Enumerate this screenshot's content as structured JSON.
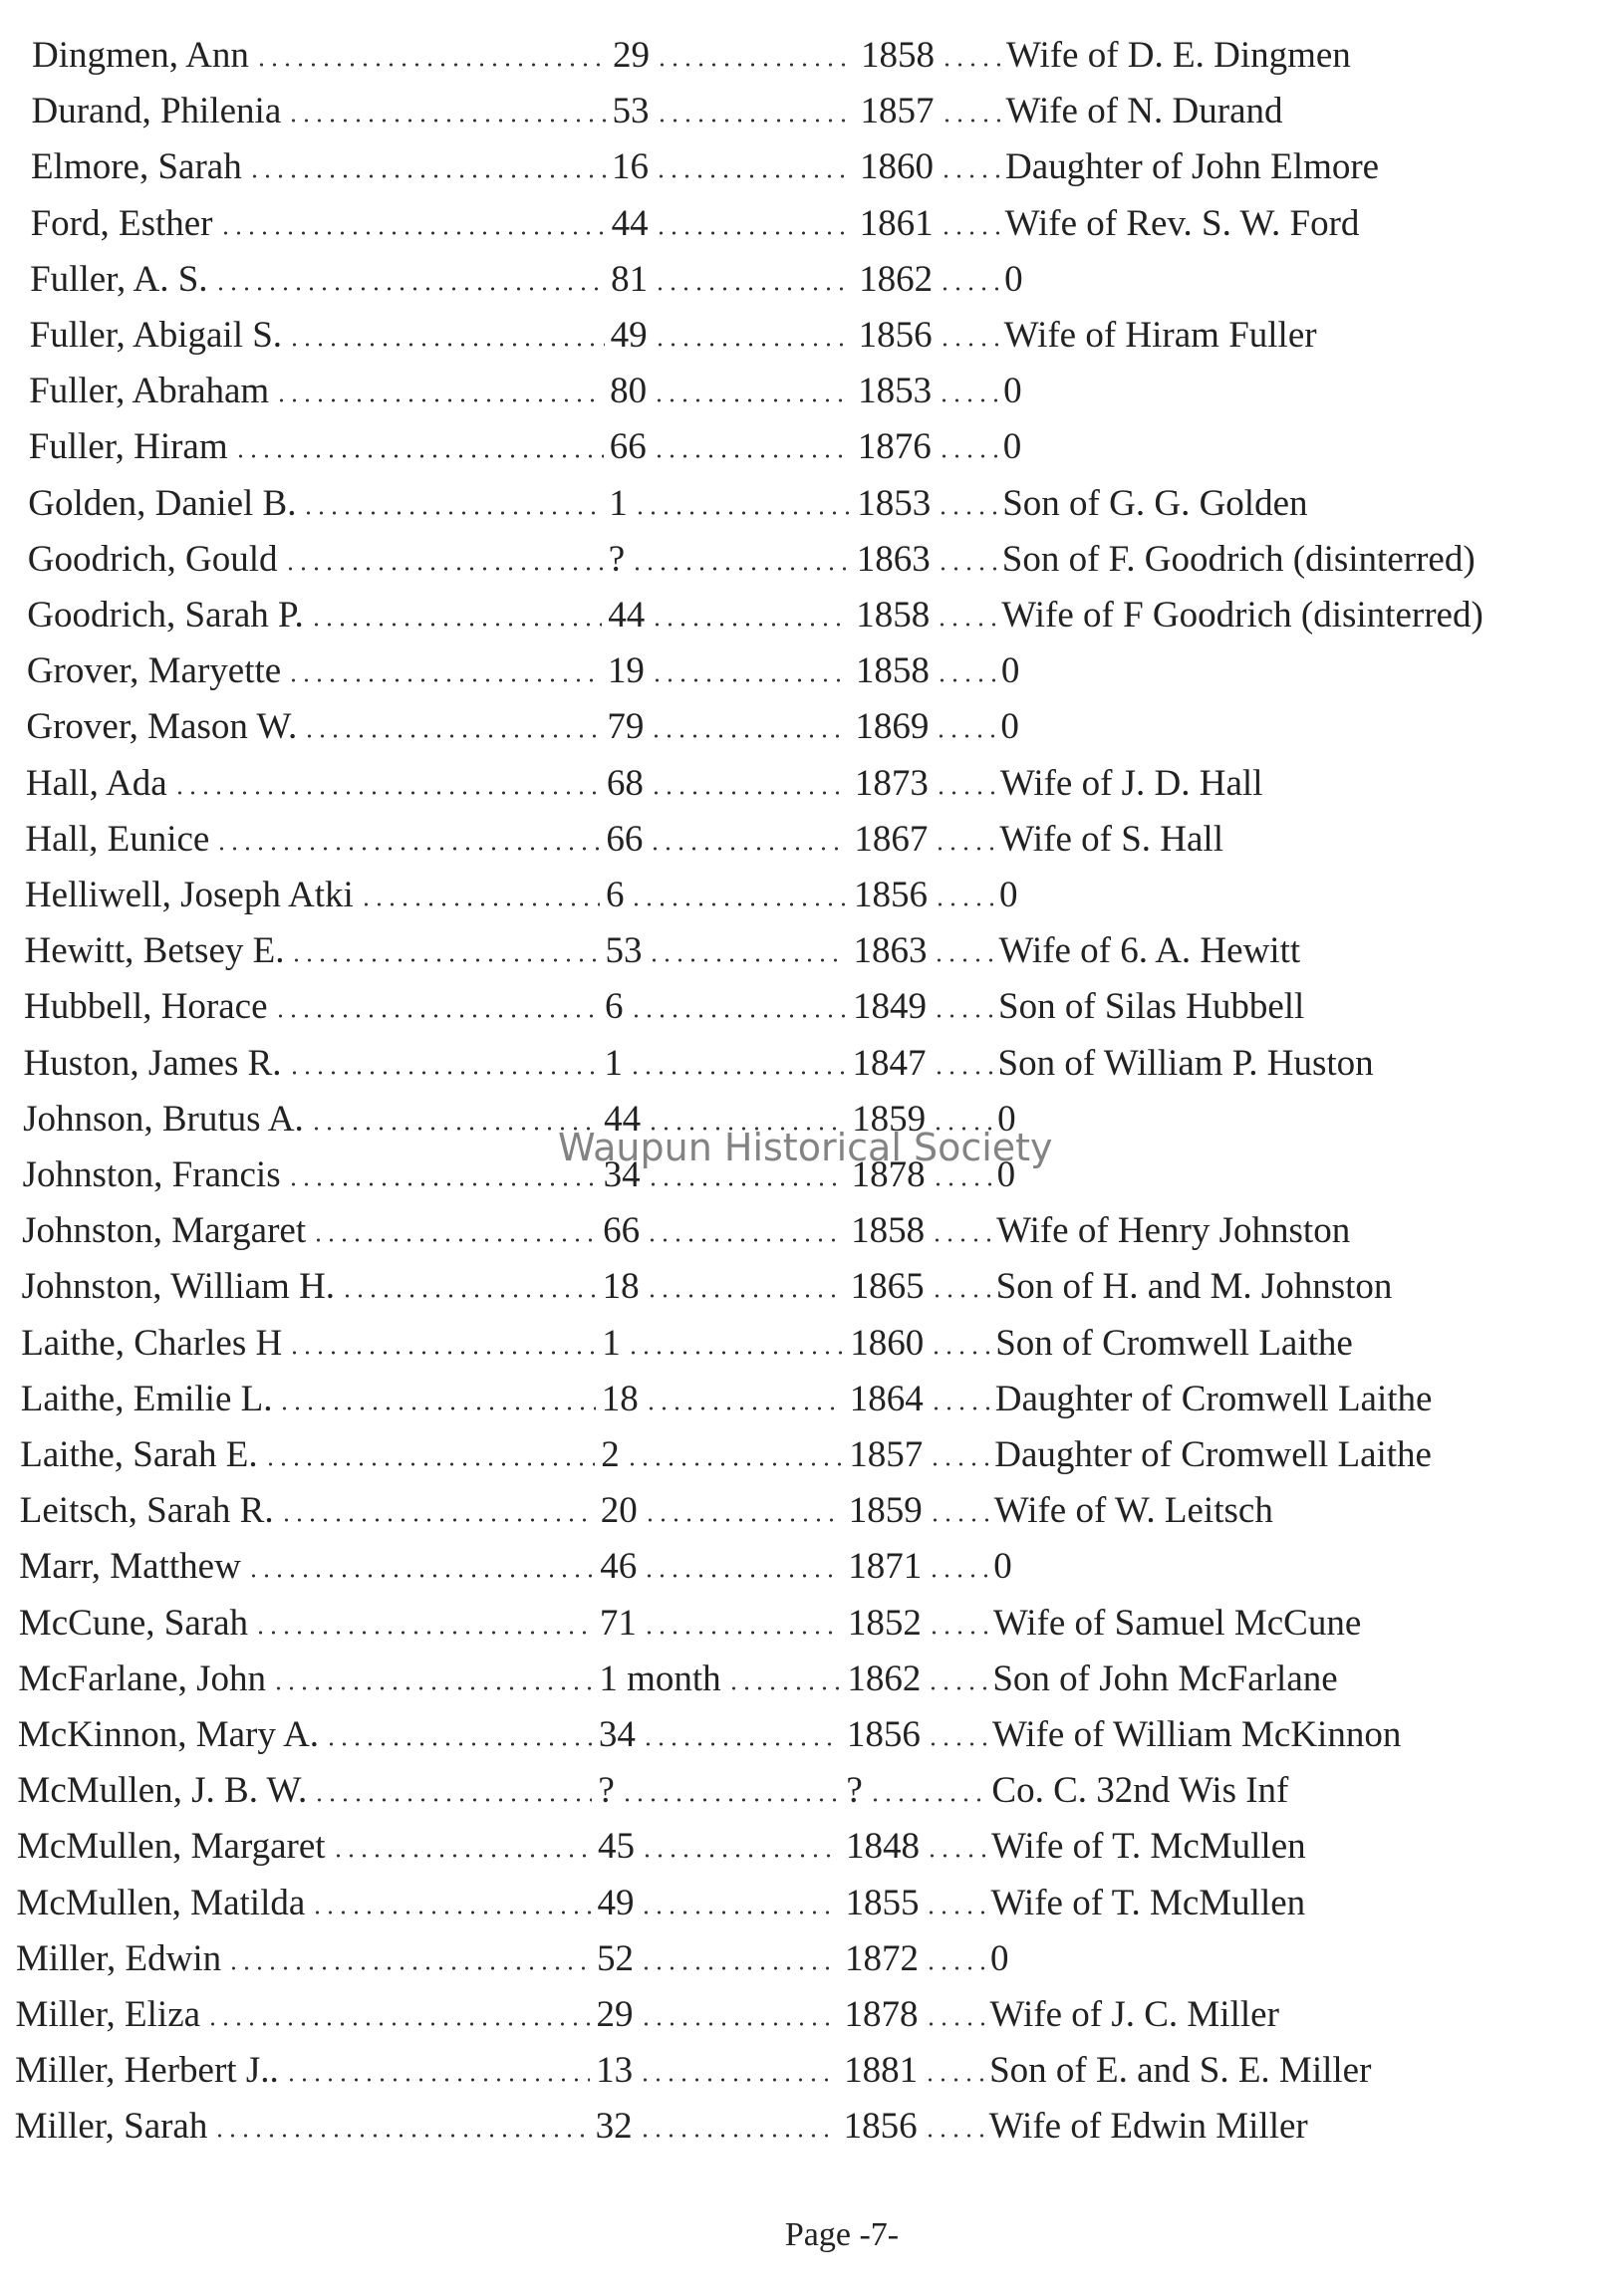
{
  "rows": [
    [
      "Dingmen, Ann",
      29,
      1858,
      "Wife of D. E. Dingmen"
    ],
    [
      "Durand, Philenia",
      53,
      1857,
      "Wife of N. Durand"
    ],
    [
      "Elmore, Sarah",
      16,
      1860,
      "Daughter of John Elmore"
    ],
    [
      "Ford, Esther",
      44,
      1861,
      "Wife of Rev. S. W. Ford"
    ],
    [
      "Fuller, A. S.",
      81,
      1862,
      "0"
    ],
    [
      "Fuller, Abigail S.",
      49,
      1856,
      "Wife of Hiram Fuller"
    ],
    [
      "Fuller, Abraham",
      80,
      1853,
      "0"
    ],
    [
      "Fuller, Hiram",
      66,
      1876,
      "0"
    ],
    [
      "Golden, Daniel B.",
      1,
      1853,
      "Son of G. G. Golden"
    ],
    [
      "Goodrich, Gould",
      "?",
      1863,
      "Son of F. Goodrich  (disinterred)"
    ],
    [
      "Goodrich, Sarah P.",
      44,
      1858,
      "Wife of F Goodrich  (disinterred)"
    ],
    [
      "Grover, Maryette",
      19,
      1858,
      "0"
    ],
    [
      "Grover, Mason W.",
      79,
      1869,
      "0"
    ],
    [
      "Hall, Ada",
      68,
      1873,
      "Wife of J. D. Hall"
    ],
    [
      "Hall, Eunice",
      66,
      1867,
      "Wife of S. Hall"
    ],
    [
      "Helliwell, Joseph Atki",
      6,
      1856,
      "0"
    ],
    [
      "Hewitt, Betsey E.",
      53,
      1863,
      "Wife of 6. A. Hewitt"
    ],
    [
      "Hubbell, Horace",
      6,
      1849,
      "Son of Silas Hubbell"
    ],
    [
      "Huston, James R.",
      1,
      1847,
      "Son of William P. Huston"
    ],
    [
      "Johnson, Brutus A.",
      44,
      1859,
      "0"
    ],
    [
      "Johnston, Francis",
      34,
      1878,
      "0"
    ],
    [
      "Johnston, Margaret",
      66,
      1858,
      "Wife of Henry Johnston"
    ],
    [
      "Johnston, William H.",
      18,
      1865,
      "Son of H. and M. Johnston"
    ],
    [
      "Laithe, Charles H",
      1,
      1860,
      "Son of Cromwell Laithe"
    ],
    [
      "Laithe, Emilie L.",
      18,
      1864,
      "Daughter of Cromwell Laithe"
    ],
    [
      "Laithe, Sarah E.",
      2,
      1857,
      "Daughter of Cromwell Laithe"
    ],
    [
      "Leitsch, Sarah R.",
      20,
      1859,
      "Wife of W. Leitsch"
    ],
    [
      "Marr, Matthew",
      46,
      1871,
      "0"
    ],
    [
      "McCune, Sarah",
      71,
      1852,
      "Wife of Samuel McCune"
    ],
    [
      "McFarlane, John",
      "1 month",
      1862,
      "Son of John McFarlane"
    ],
    [
      "McKinnon, Mary A.",
      34,
      1856,
      "Wife of William McKinnon"
    ],
    [
      "McMullen, J. B. W.",
      "?",
      "?",
      "Co. C. 32nd Wis Inf"
    ],
    [
      "McMullen, Margaret",
      45,
      1848,
      "Wife of T. McMullen"
    ],
    [
      "McMullen, Matilda",
      49,
      1855,
      "Wife of T. McMullen"
    ],
    [
      "Miller, Edwin",
      52,
      1872,
      "0"
    ],
    [
      "Miller, Eliza",
      29,
      1878,
      "Wife of J. C. Miller"
    ],
    [
      "Miller, Herbert J..",
      13,
      1881,
      "Son of E. and S. E. Miller"
    ],
    [
      "Miller, Sarah",
      32,
      1856,
      "Wife of Edwin Miller"
    ]
  ],
  "watermark": "Waupun Historical Society",
  "footer": "Page -7-"
}
